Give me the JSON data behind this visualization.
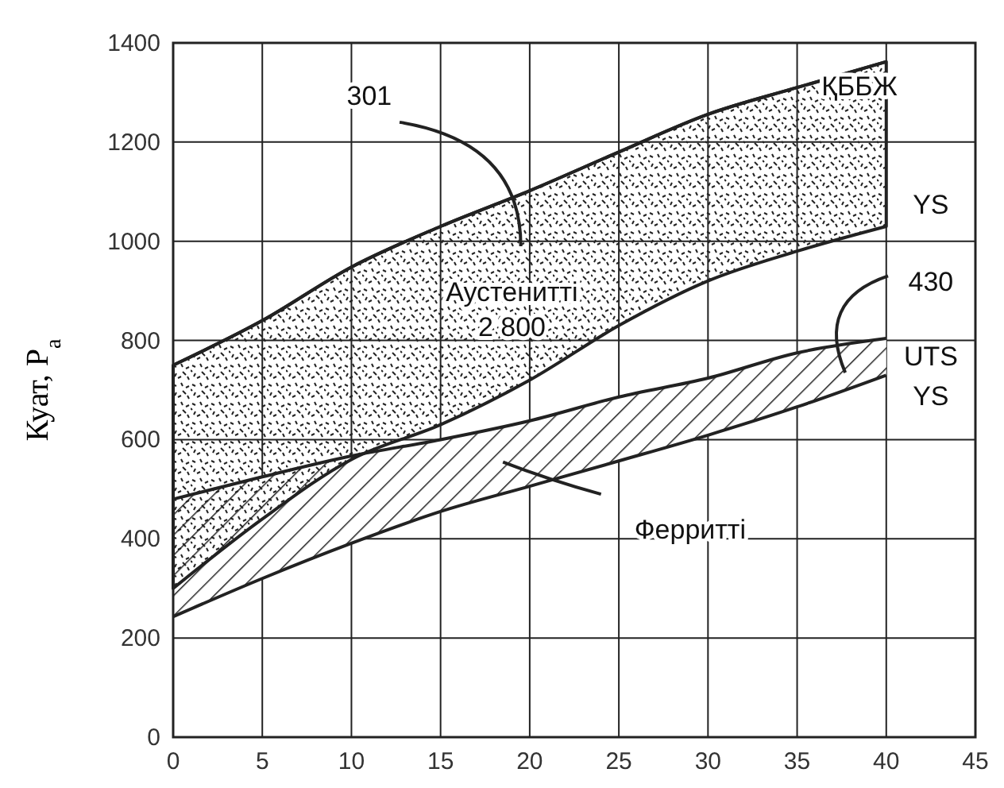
{
  "chart_data": {
    "type": "line",
    "ylabel": "Куат, P$_{a}$",
    "x": [
      0,
      5,
      10,
      15,
      20,
      25,
      30,
      35,
      40
    ],
    "series": [
      {
        "color": "#222222",
        "values": [
          750,
          840,
          948,
          1030,
          1102,
          1180,
          1256,
          1310,
          1362
        ],
        "lower": [
          300,
          440,
          560,
          630,
          720,
          830,
          920,
          980,
          1030
        ],
        "upper": [
          750,
          840,
          948,
          1030,
          1102,
          1180,
          1256,
          1310,
          1362
        ]
      },
      {
        "color": "#222222",
        "values": [
          480,
          525,
          567,
          600,
          638,
          686,
          724,
          775,
          804
        ]
      },
      {
        "color": "#222222",
        "values": [
          243,
          320,
          391,
          455,
          506,
          557,
          609,
          666,
          730
        ]
      }
    ],
    "xlim": [
      0,
      45
    ],
    "ylim": [
      0,
      1400
    ],
    "xticks": [
      0,
      5,
      10,
      15,
      20,
      25,
      30,
      35,
      40,
      45
    ],
    "yticks": [
      0,
      200,
      400,
      600,
      800,
      1000,
      1200,
      1400
    ],
    "grid": true,
    "annotations": [
      "301",
      "Аустенитті\n2 800",
      "ҚББЖ",
      "YS",
      "430",
      "UTS",
      "YS",
      "Ферритті"
    ]
  }
}
